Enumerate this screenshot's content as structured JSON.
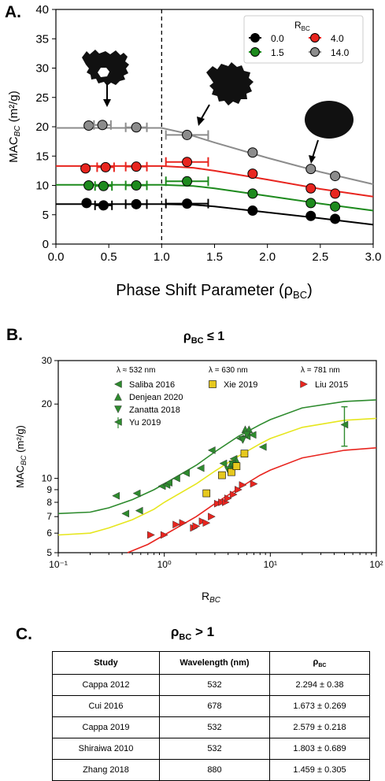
{
  "panelA": {
    "letter": "A.",
    "ylabel": "MAC",
    "ylabel_sub": "BC",
    "ylabel_unit": " (m²/g)",
    "xlabel": "Phase Shift Parameter (ρ",
    "xlabel_sub": "BC",
    "xlabel_close": ")",
    "legend_title": "R",
    "legend_title_sub": "BC",
    "chart_data": {
      "type": "scatter",
      "xlim": [
        0.0,
        3.0
      ],
      "ylim": [
        0,
        40
      ],
      "xticks": [
        "0.0",
        "0.5",
        "1.0",
        "1.5",
        "2.0",
        "2.5",
        "3.0"
      ],
      "yticks": [
        "0",
        "5",
        "10",
        "15",
        "20",
        "25",
        "30",
        "35",
        "40"
      ],
      "dashed_vline_x": 1.0,
      "series": [
        {
          "name": "0.0",
          "color": "#000000",
          "points": [
            {
              "x": 0.29,
              "y": 7.0,
              "xerr": 0.0
            },
            {
              "x": 0.45,
              "y": 6.6,
              "xerr": 0.08
            },
            {
              "x": 0.76,
              "y": 6.8,
              "xerr": 0.1
            },
            {
              "x": 1.24,
              "y": 6.9,
              "xerr": 0.2
            },
            {
              "x": 1.86,
              "y": 5.7,
              "xerr": 0
            },
            {
              "x": 2.41,
              "y": 4.8,
              "xerr": 0
            },
            {
              "x": 2.64,
              "y": 4.3,
              "xerr": 0
            }
          ],
          "curve": [
            [
              0,
              6.8
            ],
            [
              1.0,
              6.8
            ],
            [
              1.3,
              6.7
            ],
            [
              1.5,
              6.4
            ],
            [
              2.0,
              5.4
            ],
            [
              2.5,
              4.4
            ],
            [
              3.0,
              3.3
            ]
          ]
        },
        {
          "name": "1.5",
          "color": "#1d8a1d",
          "points": [
            {
              "x": 0.31,
              "y": 10.0,
              "xerr": 0
            },
            {
              "x": 0.45,
              "y": 9.9,
              "xerr": 0.08
            },
            {
              "x": 0.76,
              "y": 10.0,
              "xerr": 0.1
            },
            {
              "x": 1.24,
              "y": 10.7,
              "xerr": 0.2
            },
            {
              "x": 1.86,
              "y": 8.6,
              "xerr": 0
            },
            {
              "x": 2.41,
              "y": 7.0,
              "xerr": 0
            },
            {
              "x": 2.64,
              "y": 6.4,
              "xerr": 0
            }
          ],
          "curve": [
            [
              0,
              10.1
            ],
            [
              1.0,
              10.1
            ],
            [
              1.3,
              9.9
            ],
            [
              1.5,
              9.5
            ],
            [
              2.0,
              8.2
            ],
            [
              2.5,
              6.9
            ],
            [
              3.0,
              5.7
            ]
          ]
        },
        {
          "name": "4.0",
          "color": "#e8251f",
          "points": [
            {
              "x": 0.28,
              "y": 12.9,
              "xerr": 0
            },
            {
              "x": 0.47,
              "y": 13.1,
              "xerr": 0.08
            },
            {
              "x": 0.76,
              "y": 13.2,
              "xerr": 0.1
            },
            {
              "x": 1.24,
              "y": 14.0,
              "xerr": 0.2
            },
            {
              "x": 1.86,
              "y": 12.0,
              "xerr": 0
            },
            {
              "x": 2.41,
              "y": 9.5,
              "xerr": 0
            },
            {
              "x": 2.64,
              "y": 8.6,
              "xerr": 0
            }
          ],
          "curve": [
            [
              0,
              13.3
            ],
            [
              1.0,
              13.3
            ],
            [
              1.3,
              13.0
            ],
            [
              1.5,
              12.5
            ],
            [
              2.0,
              11.0
            ],
            [
              2.5,
              9.4
            ],
            [
              3.0,
              8.1
            ]
          ]
        },
        {
          "name": "14.0",
          "color": "#8c8c8c",
          "points": [
            {
              "x": 0.31,
              "y": 20.2,
              "xerr": 0
            },
            {
              "x": 0.44,
              "y": 20.3,
              "xerr": 0.08
            },
            {
              "x": 0.76,
              "y": 19.9,
              "xerr": 0.1
            },
            {
              "x": 1.24,
              "y": 18.6,
              "xerr": 0.2
            },
            {
              "x": 1.86,
              "y": 15.6,
              "xerr": 0
            },
            {
              "x": 2.41,
              "y": 12.8,
              "xerr": 0
            },
            {
              "x": 2.64,
              "y": 11.6,
              "xerr": 0
            }
          ],
          "curve": [
            [
              0,
              19.8
            ],
            [
              1.0,
              19.8
            ],
            [
              1.2,
              19.0
            ],
            [
              1.5,
              17.3
            ],
            [
              2.0,
              14.7
            ],
            [
              2.5,
              12.3
            ],
            [
              3.0,
              10.2
            ]
          ]
        }
      ]
    }
  },
  "panelB": {
    "letter": "B.",
    "title_rho": "ρ",
    "title_sub": "BC",
    "title_rest": " ≤ 1",
    "ylabel": "MAC",
    "ylabel_sub": "BC",
    "ylabel_unit": " (m²/g)",
    "xlabel": "R",
    "xlabel_sub": "BC",
    "legend_headers": [
      "λ ≈ 532 nm",
      "λ = 630 nm",
      "λ = 781 nm"
    ],
    "legend_entries": [
      "Saliba 2016",
      "Denjean 2020",
      "Zanatta 2018",
      "Yu 2019",
      "Xie 2019",
      "Liu 2015"
    ],
    "chart_data": {
      "type": "scatter",
      "xscale": "log",
      "yscale": "log",
      "xlim": [
        0.1,
        100
      ],
      "ylim": [
        5,
        30
      ],
      "xticks": [
        "10⁻¹",
        "10⁰",
        "10¹",
        "10²"
      ],
      "yticks": [
        "5",
        "6",
        "7",
        "8",
        "9",
        "10",
        "20",
        "30"
      ],
      "curves": [
        {
          "color": "#2e8b2e",
          "points": [
            [
              0.1,
              7.2
            ],
            [
              0.2,
              7.3
            ],
            [
              0.3,
              7.6
            ],
            [
              0.5,
              8.2
            ],
            [
              0.8,
              9.0
            ],
            [
              1,
              9.5
            ],
            [
              2,
              11.3
            ],
            [
              3,
              12.8
            ],
            [
              5,
              14.8
            ],
            [
              8,
              16.5
            ],
            [
              10,
              17.3
            ],
            [
              20,
              19.3
            ],
            [
              50,
              20.5
            ],
            [
              100,
              20.8
            ]
          ]
        },
        {
          "color": "#e6e61e",
          "points": [
            [
              0.1,
              5.9
            ],
            [
              0.2,
              6.0
            ],
            [
              0.3,
              6.3
            ],
            [
              0.5,
              6.8
            ],
            [
              0.8,
              7.5
            ],
            [
              1,
              8.0
            ],
            [
              2,
              9.5
            ],
            [
              3,
              10.7
            ],
            [
              5,
              12.3
            ],
            [
              8,
              13.8
            ],
            [
              10,
              14.5
            ],
            [
              20,
              16.1
            ],
            [
              50,
              17.2
            ],
            [
              100,
              17.5
            ]
          ]
        },
        {
          "color": "#e8251f",
          "points": [
            [
              0.45,
              5.0
            ],
            [
              0.7,
              5.4
            ],
            [
              1,
              5.9
            ],
            [
              2,
              7.0
            ],
            [
              3,
              7.9
            ],
            [
              5,
              9.1
            ],
            [
              8,
              10.3
            ],
            [
              10,
              10.8
            ],
            [
              20,
              12.1
            ],
            [
              50,
              13.0
            ],
            [
              100,
              13.3
            ]
          ]
        }
      ],
      "series": [
        {
          "name": "Saliba 2016",
          "color": "#2e8b2e",
          "marker": "triangle-left",
          "points": [
            [
              0.35,
              8.5
            ],
            [
              0.43,
              7.2
            ],
            [
              0.55,
              8.7
            ],
            [
              0.58,
              7.4
            ],
            [
              0.95,
              9.3
            ],
            [
              1.05,
              9.4
            ],
            [
              1.1,
              9.6
            ],
            [
              1.3,
              10.0
            ],
            [
              1.6,
              10.5
            ],
            [
              2.2,
              11.0
            ],
            [
              2.8,
              13.0
            ],
            [
              3.6,
              11.5
            ],
            [
              4.5,
              12.0
            ],
            [
              5.2,
              14.5
            ],
            [
              6.0,
              14.8
            ],
            [
              6.8,
              15.0
            ],
            [
              8.5,
              13.4
            ]
          ]
        },
        {
          "name": "Denjean 2020",
          "color": "#2e8b2e",
          "marker": "triangle-up",
          "points": [
            [
              4.2,
              11.3
            ],
            [
              4.8,
              11.8
            ],
            [
              5.8,
              15.8
            ],
            [
              6.3,
              15.8
            ]
          ]
        },
        {
          "name": "Zanatta 2018",
          "color": "#2e8b2e",
          "marker": "triangle-down",
          "points": [
            [
              4.0,
              10.8
            ],
            [
              4.4,
              11.4
            ],
            [
              5.5,
              14.3
            ],
            [
              6.0,
              15.0
            ]
          ]
        },
        {
          "name": "Yu 2019",
          "color": "#2e8b2e",
          "marker": "triangle-left",
          "yerr": [
            13.5,
            19.5
          ],
          "points": [
            [
              50,
              16.5
            ]
          ]
        },
        {
          "name": "Xie 2019",
          "color": "#e6c81e",
          "marker": "square",
          "points": [
            [
              2.5,
              8.7
            ],
            [
              3.5,
              10.3
            ],
            [
              4.3,
              10.6
            ],
            [
              4.8,
              11.2
            ],
            [
              5.7,
              12.6
            ]
          ]
        },
        {
          "name": "Liu 2015",
          "color": "#e8251f",
          "marker": "triangle-right",
          "points": [
            [
              0.75,
              5.9
            ],
            [
              1.0,
              5.9
            ],
            [
              1.3,
              6.5
            ],
            [
              1.5,
              6.6
            ],
            [
              1.9,
              6.3
            ],
            [
              2.0,
              6.4
            ],
            [
              2.3,
              6.7
            ],
            [
              2.5,
              6.6
            ],
            [
              2.8,
              7.0
            ],
            [
              3.2,
              7.9
            ],
            [
              3.5,
              8.0
            ],
            [
              3.8,
              8.0
            ],
            [
              4.0,
              8.3
            ],
            [
              4.5,
              8.6
            ],
            [
              5.0,
              9.0
            ],
            [
              5.5,
              9.4
            ],
            [
              7.0,
              9.5
            ]
          ]
        }
      ]
    }
  },
  "panelC": {
    "letter": "C.",
    "title_rho": "ρ",
    "title_sub": "BC",
    "title_rest": " > 1",
    "headers": [
      "Study",
      "Wavelength (nm)",
      "ρ",
      "BC"
    ],
    "rows": [
      [
        "Cappa 2012",
        "532",
        "2.294 ± 0.38"
      ],
      [
        "Cui 2016",
        "678",
        "1.673 ± 0.269"
      ],
      [
        "Cappa 2019",
        "532",
        "2.579 ± 0.218"
      ],
      [
        "Shiraiwa 2010",
        "532",
        "1.803 ± 0.689"
      ],
      [
        "Zhang 2018",
        "880",
        "1.459 ± 0.305"
      ]
    ]
  }
}
